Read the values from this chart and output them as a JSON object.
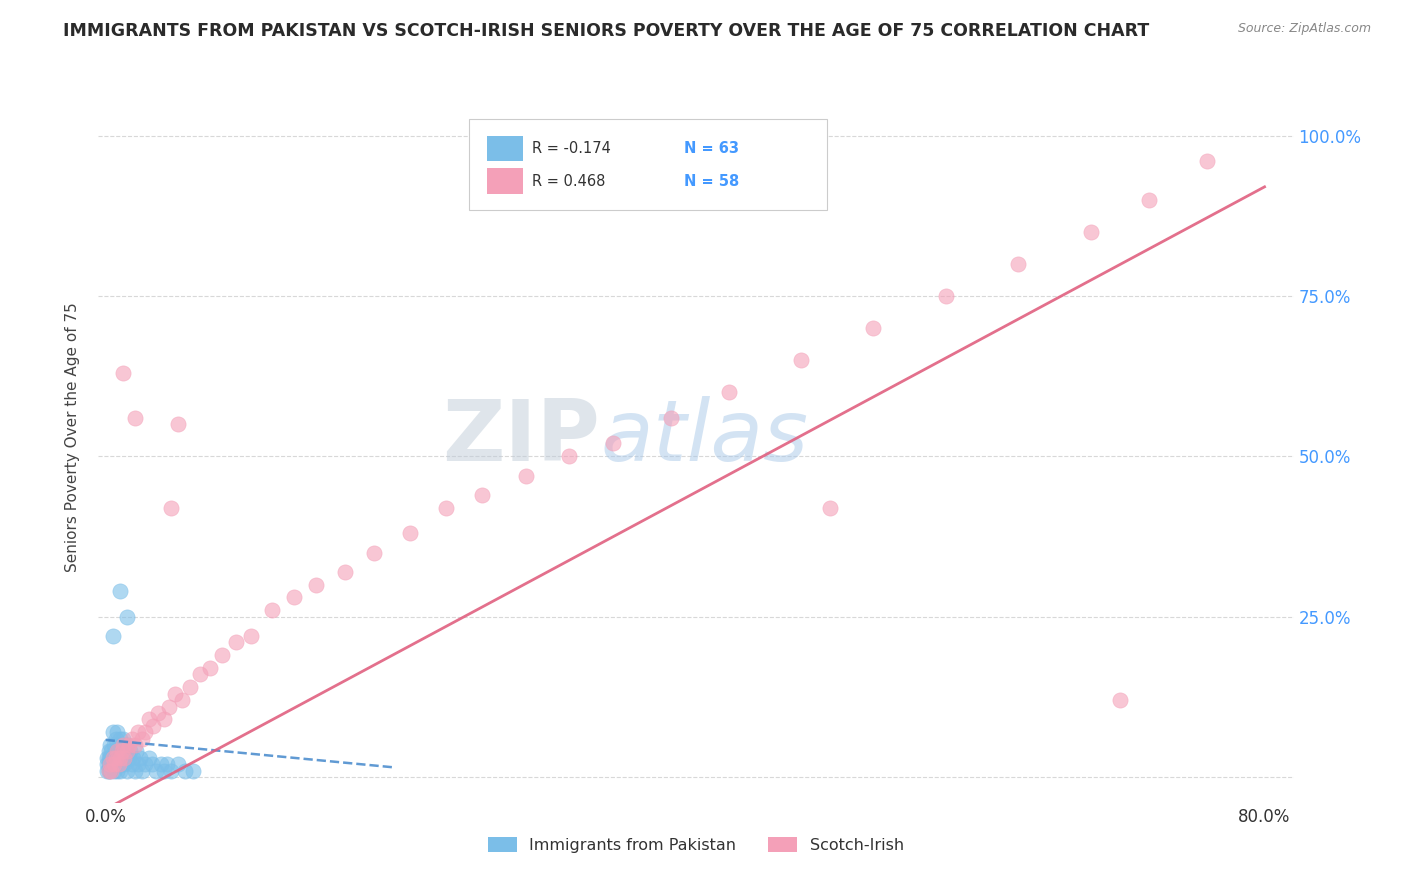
{
  "title": "IMMIGRANTS FROM PAKISTAN VS SCOTCH-IRISH SENIORS POVERTY OVER THE AGE OF 75 CORRELATION CHART",
  "source": "Source: ZipAtlas.com",
  "ylabel": "Seniors Poverty Over the Age of 75",
  "xlim": [
    -0.005,
    0.82
  ],
  "ylim": [
    -0.04,
    1.1
  ],
  "xtick_positions": [
    0.0,
    0.1,
    0.2,
    0.3,
    0.4,
    0.5,
    0.6,
    0.7,
    0.8
  ],
  "xticklabels": [
    "0.0%",
    "",
    "",
    "",
    "",
    "",
    "",
    "",
    "80.0%"
  ],
  "ytick_positions": [
    0.0,
    0.25,
    0.5,
    0.75,
    1.0
  ],
  "yticklabels_right": [
    "",
    "25.0%",
    "50.0%",
    "75.0%",
    "100.0%"
  ],
  "watermark_zip": "ZIP",
  "watermark_atlas": "atlas",
  "legend_r1": "R = -0.174",
  "legend_n1": "N = 63",
  "legend_r2": "R = 0.468",
  "legend_n2": "N = 58",
  "color_pakistan": "#7bbee8",
  "color_scotch": "#f4a0b8",
  "color_right_axis": "#4499ff",
  "background_color": "#ffffff",
  "grid_color": "#d8d8d8",
  "title_color": "#2a2a2a",
  "axis_label_color": "#444444",
  "pak_trend_x": [
    0.0,
    0.2
  ],
  "pak_trend_y": [
    0.058,
    0.015
  ],
  "si_trend_x": [
    0.0,
    0.8
  ],
  "si_trend_y": [
    -0.05,
    0.92
  ]
}
